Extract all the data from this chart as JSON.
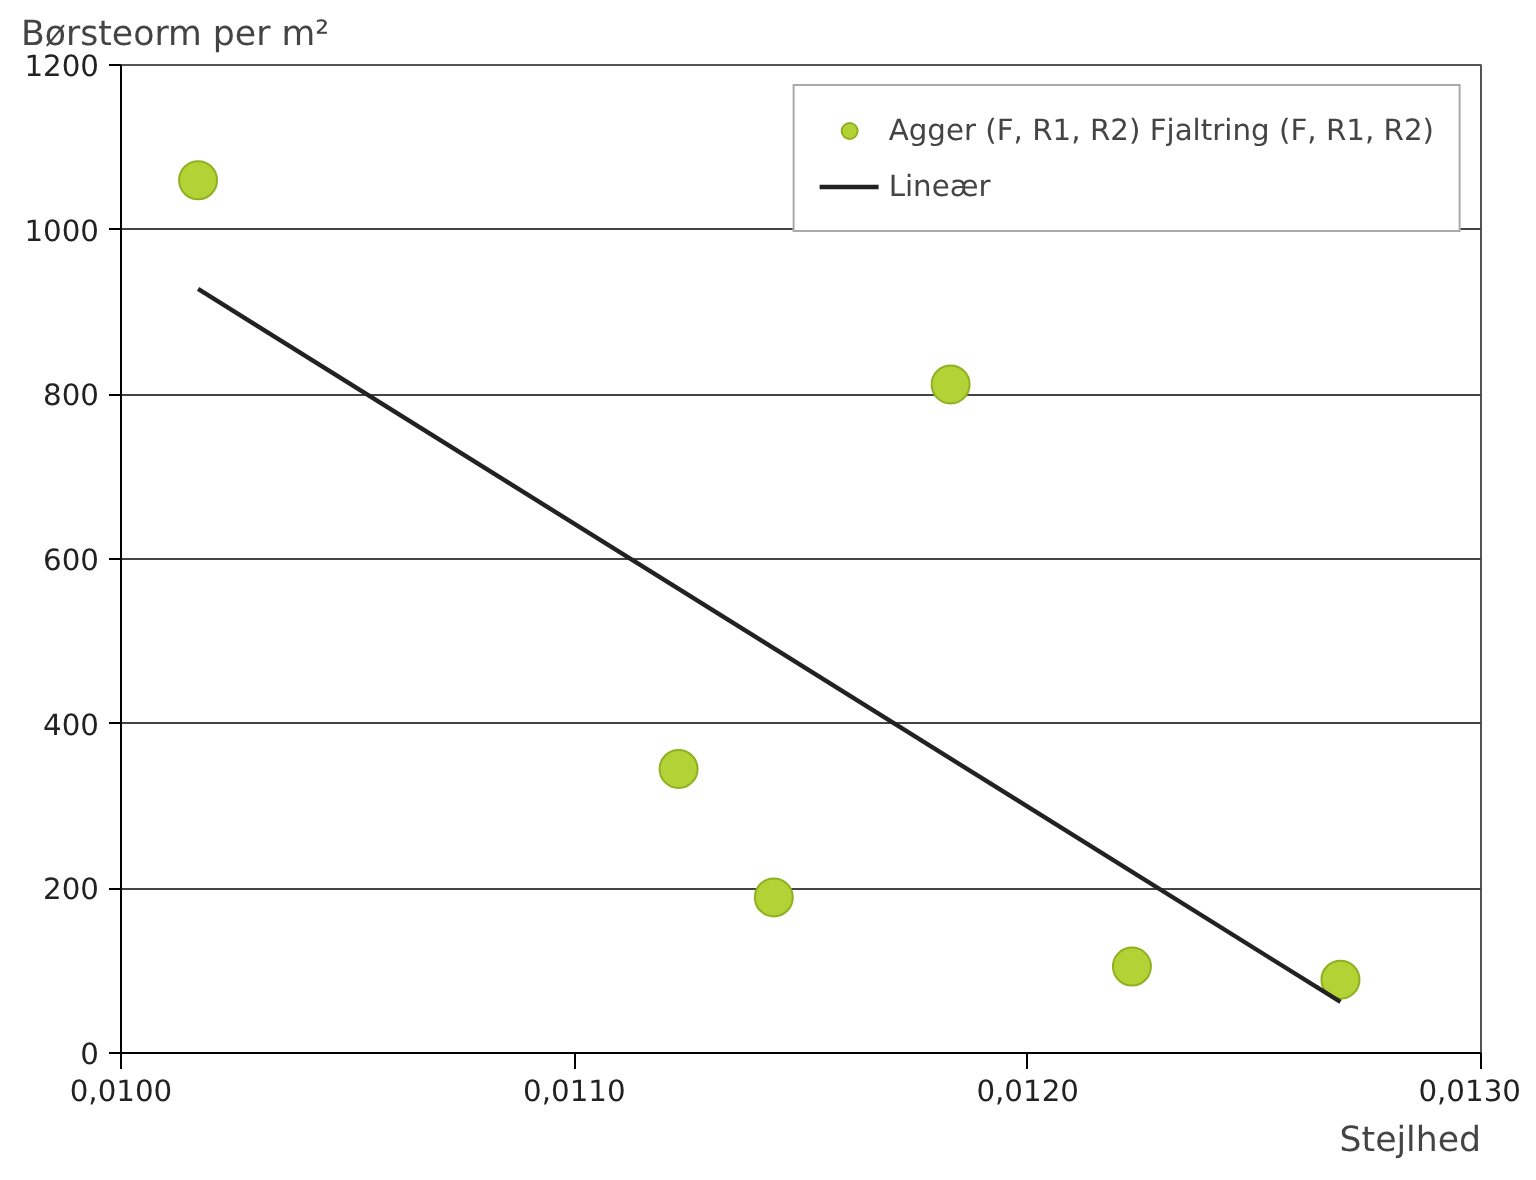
{
  "chart_data": {
    "type": "scatter",
    "xlabel": "Stejlhed",
    "ylabel": "Børsteorm per m²",
    "xlim": [
      0.01,
      0.013
    ],
    "ylim": [
      0,
      1200
    ],
    "xticks": [
      {
        "value": 0.01,
        "label": "0,0100"
      },
      {
        "value": 0.011,
        "label": "0,0110"
      },
      {
        "value": 0.012,
        "label": "0,0120"
      },
      {
        "value": 0.013,
        "label": "0,0130"
      }
    ],
    "yticks": [
      0,
      200,
      400,
      600,
      800,
      1000,
      1200
    ],
    "grid": "y",
    "legend": "top right",
    "series": [
      {
        "name": "Agger (F, R1, R2) Fjaltring (F, R1, R2)",
        "marker": "circle",
        "color": "#b2d235",
        "x": [
          0.01017,
          0.01183,
          0.01123,
          0.01144,
          0.01223,
          0.01269
        ],
        "values": [
          1060,
          812,
          345,
          189,
          105,
          89
        ]
      },
      {
        "name": "Lineær",
        "type": "line",
        "color": "#222222",
        "x": [
          0.01017,
          0.01269
        ],
        "values": [
          928,
          62
        ]
      }
    ]
  }
}
